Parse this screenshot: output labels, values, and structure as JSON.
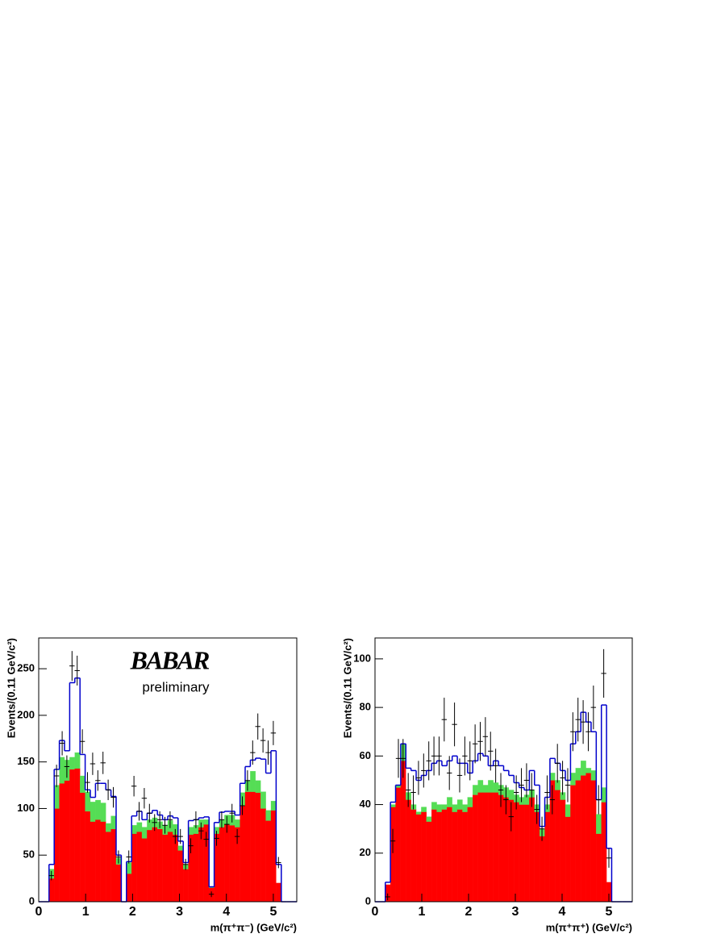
{
  "chart_data": [
    {
      "type": "histogram",
      "xlabel": "m(π⁺π⁻) (GeV/c²)",
      "ylabel": "Events/(0.11 GeV/c²)",
      "logo": "BABAR",
      "note": "preliminary",
      "xlim": [
        0,
        5.5
      ],
      "ylim": [
        0,
        283
      ],
      "xticks": [
        0,
        1,
        2,
        3,
        4,
        5
      ],
      "yticks": [
        0,
        50,
        100,
        150,
        200,
        250
      ],
      "bins": [
        0,
        0.11,
        0.22,
        0.33,
        0.44,
        0.55,
        0.66,
        0.77,
        0.88,
        0.99,
        1.1,
        1.21,
        1.32,
        1.43,
        1.54,
        1.65,
        1.76,
        1.87,
        1.98,
        2.09,
        2.2,
        2.31,
        2.42,
        2.53,
        2.64,
        2.75,
        2.86,
        2.97,
        3.08,
        3.19,
        3.3,
        3.41,
        3.52,
        3.63,
        3.74,
        3.85,
        3.96,
        4.07,
        4.18,
        4.29,
        4.4,
        4.51,
        4.62,
        4.73,
        4.84,
        4.95,
        5.06,
        5.17,
        5.28,
        5.39,
        5.5
      ],
      "series": [
        {
          "color": "#ff0000",
          "values": [
            0,
            0,
            25,
            100,
            127,
            130,
            142,
            143,
            117,
            97,
            86,
            88,
            86,
            75,
            78,
            40,
            0,
            30,
            73,
            75,
            68,
            77,
            80,
            78,
            72,
            75,
            72,
            55,
            35,
            72,
            73,
            80,
            83,
            15,
            73,
            80,
            83,
            82,
            80,
            103,
            118,
            118,
            117,
            100,
            87,
            98,
            20,
            0,
            0,
            0
          ]
        },
        {
          "color": "#55dd55",
          "values": [
            0,
            0,
            10,
            25,
            28,
            22,
            13,
            17,
            18,
            21,
            21,
            21,
            20,
            9,
            14,
            7,
            0,
            12,
            9,
            10,
            12,
            11,
            10,
            8,
            10,
            12,
            11,
            5,
            5,
            8,
            9,
            8,
            5,
            1,
            7,
            8,
            10,
            11,
            8,
            14,
            12,
            22,
            13,
            18,
            11,
            10,
            0,
            0,
            0,
            0
          ]
        }
      ],
      "outline": {
        "color": "#0000cc",
        "values": [
          0,
          0,
          40,
          142,
          173,
          162,
          235,
          240,
          158,
          120,
          112,
          127,
          127,
          120,
          113,
          50,
          0,
          43,
          92,
          97,
          88,
          95,
          98,
          93,
          88,
          92,
          90,
          65,
          42,
          87,
          88,
          90,
          91,
          16,
          85,
          96,
          97,
          97,
          93,
          127,
          145,
          152,
          154,
          153,
          138,
          162,
          40,
          0,
          0,
          0
        ]
      },
      "points": {
        "color": "#000000",
        "x": [
          0.27,
          0.38,
          0.5,
          0.6,
          0.71,
          0.82,
          0.93,
          1.04,
          1.15,
          1.26,
          1.37,
          1.48,
          1.59,
          1.7,
          1.92,
          2.03,
          2.14,
          2.25,
          2.36,
          2.47,
          2.58,
          2.69,
          2.8,
          2.91,
          3.02,
          3.13,
          3.24,
          3.35,
          3.46,
          3.57,
          3.68,
          3.79,
          3.9,
          4.01,
          4.12,
          4.23,
          4.34,
          4.45,
          4.56,
          4.67,
          4.78,
          4.89,
          5.0,
          5.11
        ],
        "values": [
          28,
          135,
          170,
          145,
          253,
          248,
          172,
          128,
          148,
          130,
          149,
          120,
          112,
          48,
          48,
          124,
          97,
          111,
          95,
          85,
          88,
          82,
          88,
          70,
          70,
          40,
          60,
          88,
          76,
          67,
          8,
          68,
          88,
          83,
          95,
          70,
          103,
          130,
          160,
          188,
          173,
          160,
          181,
          42
        ],
        "errors": [
          5,
          12,
          13,
          12,
          16,
          16,
          13,
          11,
          12,
          11,
          12,
          11,
          11,
          7,
          7,
          11,
          10,
          11,
          10,
          9,
          9,
          9,
          9,
          8,
          8,
          6,
          8,
          9,
          9,
          8,
          3,
          8,
          9,
          9,
          10,
          8,
          10,
          11,
          13,
          14,
          13,
          13,
          13,
          6
        ]
      }
    },
    {
      "type": "histogram",
      "xlabel": "m(π⁺π⁺) (GeV/c²)",
      "ylabel": "Events/(0.11 GeV/c²)",
      "xlim": [
        0,
        5.5
      ],
      "ylim": [
        0,
        108.6
      ],
      "xticks": [
        0,
        1,
        2,
        3,
        4,
        5
      ],
      "yticks": [
        0,
        20,
        40,
        60,
        80,
        100
      ],
      "bins": [
        0,
        0.11,
        0.22,
        0.33,
        0.44,
        0.55,
        0.66,
        0.77,
        0.88,
        0.99,
        1.1,
        1.21,
        1.32,
        1.43,
        1.54,
        1.65,
        1.76,
        1.87,
        1.98,
        2.09,
        2.2,
        2.31,
        2.42,
        2.53,
        2.64,
        2.75,
        2.86,
        2.97,
        3.08,
        3.19,
        3.3,
        3.41,
        3.52,
        3.63,
        3.74,
        3.85,
        3.96,
        4.07,
        4.18,
        4.29,
        4.4,
        4.51,
        4.62,
        4.73,
        4.84,
        4.95,
        5.06,
        5.17,
        5.28,
        5.39,
        5.5
      ],
      "series": [
        {
          "color": "#ff0000",
          "values": [
            0,
            0,
            7,
            39,
            47,
            58,
            42,
            38,
            36,
            37,
            33,
            38,
            37,
            38,
            39,
            37,
            38,
            37,
            39,
            44,
            45,
            45,
            45,
            45,
            44,
            43,
            42,
            41,
            40,
            40,
            43,
            37,
            27,
            37,
            50,
            46,
            42,
            35,
            48,
            50,
            52,
            53,
            50,
            28,
            41,
            8,
            0,
            0,
            0,
            0
          ]
        },
        {
          "color": "#55dd55",
          "values": [
            0,
            0,
            0,
            1,
            1,
            7,
            3,
            2,
            1,
            2,
            2,
            3,
            3,
            2,
            4,
            3,
            4,
            3,
            4,
            4,
            5,
            3,
            5,
            4,
            4,
            4,
            4,
            3,
            3,
            4,
            3,
            3,
            3,
            3,
            3,
            4,
            3,
            5,
            5,
            5,
            6,
            2,
            4,
            8,
            6,
            0,
            0,
            0,
            0,
            0
          ]
        }
      ],
      "outline": {
        "color": "#0000cc",
        "values": [
          0,
          0,
          8,
          41,
          48,
          65,
          55,
          54,
          50,
          52,
          54,
          57,
          58,
          56,
          58,
          60,
          57,
          57,
          53,
          58,
          61,
          60,
          56,
          58,
          56,
          54,
          52,
          49,
          47,
          46,
          54,
          48,
          31,
          43,
          59,
          57,
          54,
          50,
          65,
          70,
          78,
          74,
          70,
          42,
          81,
          22,
          0,
          0,
          0,
          0
        ]
      },
      "points": {
        "color": "#000000",
        "x": [
          0.27,
          0.38,
          0.5,
          0.6,
          0.71,
          0.82,
          0.93,
          1.04,
          1.15,
          1.26,
          1.37,
          1.48,
          1.59,
          1.7,
          1.81,
          1.92,
          2.03,
          2.14,
          2.25,
          2.36,
          2.47,
          2.58,
          2.69,
          2.8,
          2.91,
          3.02,
          3.13,
          3.24,
          3.35,
          3.46,
          3.57,
          3.68,
          3.79,
          3.9,
          4.01,
          4.12,
          4.23,
          4.34,
          4.45,
          4.56,
          4.67,
          4.78,
          4.89,
          5.0
        ],
        "values": [
          2,
          25,
          59,
          59,
          46,
          45,
          51,
          54,
          58,
          60,
          60,
          75,
          53,
          73,
          52,
          60,
          58,
          65,
          66,
          68,
          62,
          56,
          46,
          42,
          35,
          45,
          48,
          50,
          46,
          38,
          30,
          45,
          42,
          57,
          51,
          48,
          70,
          75,
          74,
          70,
          80,
          42,
          94,
          18
        ],
        "errors": [
          1.4,
          5,
          8,
          8,
          7,
          7,
          7,
          7,
          8,
          8,
          8,
          9,
          7,
          9,
          7,
          8,
          8,
          8,
          8,
          8,
          8,
          7,
          7,
          6,
          6,
          7,
          7,
          7,
          7,
          6,
          5,
          7,
          6,
          8,
          7,
          7,
          8,
          9,
          9,
          8,
          9,
          6,
          10,
          4
        ]
      }
    }
  ]
}
